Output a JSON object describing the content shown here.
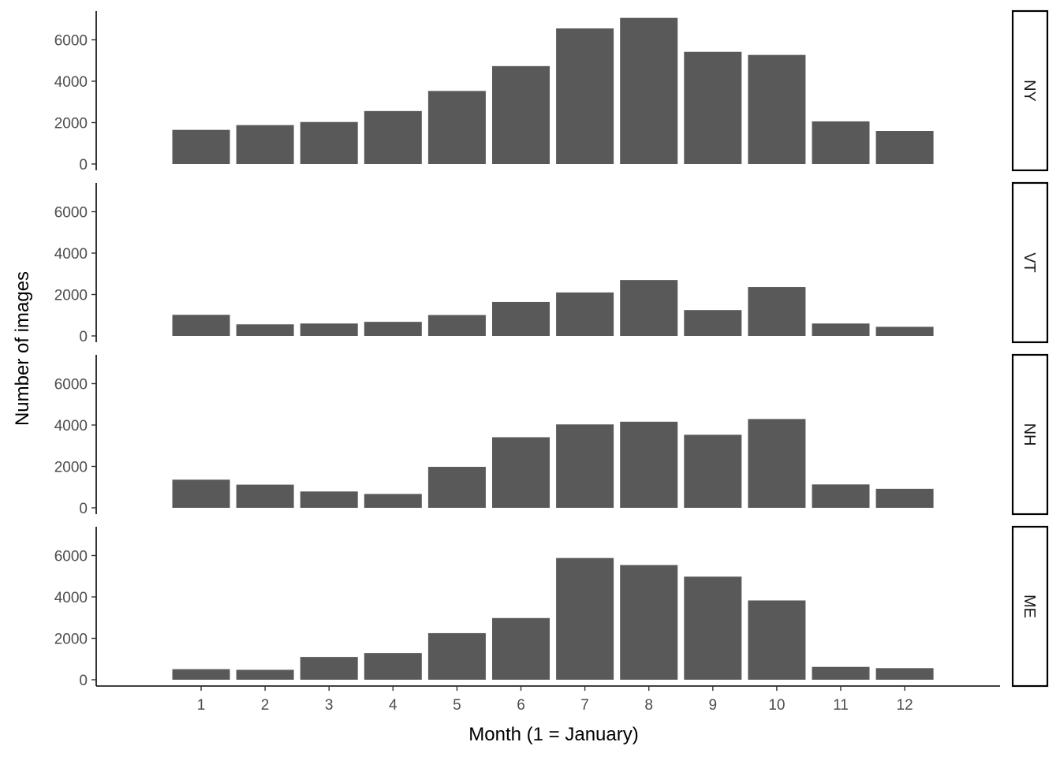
{
  "chart_data": {
    "type": "bar",
    "facet_layout": "rows",
    "xlabel": "Month (1 = January)",
    "ylabel": "Number of images",
    "categories": [
      "1",
      "2",
      "3",
      "4",
      "5",
      "6",
      "7",
      "8",
      "9",
      "10",
      "11",
      "12"
    ],
    "ylim": [
      0,
      7300
    ],
    "yticks": [
      0,
      2000,
      4000,
      6000
    ],
    "ytick_labels": [
      "0",
      "2000",
      "4000",
      "6000"
    ],
    "grid": false,
    "legend": "none",
    "bar_color": "#595959",
    "panels": [
      {
        "strip": "NY",
        "values": [
          1650,
          1880,
          2030,
          2560,
          3530,
          4730,
          6550,
          7060,
          5420,
          5270,
          2060,
          1600
        ]
      },
      {
        "strip": "VT",
        "values": [
          1020,
          560,
          600,
          680,
          1010,
          1640,
          2100,
          2700,
          1250,
          2360,
          600,
          440
        ]
      },
      {
        "strip": "NH",
        "values": [
          1360,
          1120,
          790,
          670,
          1980,
          3410,
          4030,
          4160,
          3530,
          4290,
          1130,
          920
        ]
      },
      {
        "strip": "ME",
        "values": [
          510,
          480,
          1100,
          1290,
          2250,
          2980,
          5880,
          5540,
          4980,
          3830,
          620,
          560
        ]
      }
    ]
  }
}
